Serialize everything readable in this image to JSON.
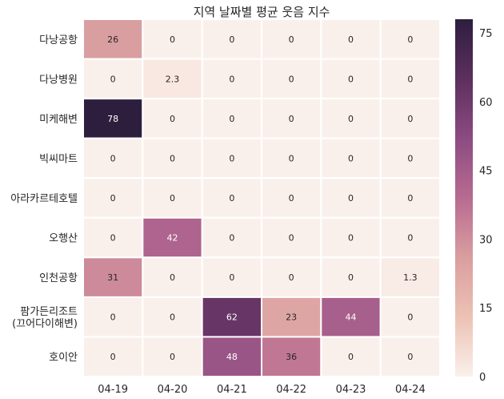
{
  "chart_data": {
    "type": "heatmap",
    "title": "지역 날짜별 평균 웃음 지수",
    "xlabel": "",
    "ylabel": "",
    "columns": [
      "04-19",
      "04-20",
      "04-21",
      "04-22",
      "04-23",
      "04-24"
    ],
    "rows": [
      [
        "다낭공항"
      ],
      [
        "다낭병원"
      ],
      [
        "미케해변"
      ],
      [
        "빅씨마트"
      ],
      [
        "아라카르테호텔"
      ],
      [
        "오행산"
      ],
      [
        "인천공항"
      ],
      [
        "팜가든리조트",
        "(끄어다이해변)"
      ],
      [
        "호이안"
      ]
    ],
    "values": [
      [
        26,
        0,
        0,
        0,
        0,
        0
      ],
      [
        0,
        2.3,
        0,
        0,
        0,
        0
      ],
      [
        78,
        0,
        0,
        0,
        0,
        0
      ],
      [
        0,
        0,
        0,
        0,
        0,
        0
      ],
      [
        0,
        0,
        0,
        0,
        0,
        0
      ],
      [
        0,
        42,
        0,
        0,
        0,
        0
      ],
      [
        31,
        0,
        0,
        0,
        0,
        1.3
      ],
      [
        0,
        0,
        62,
        23,
        44,
        0
      ],
      [
        0,
        0,
        48,
        36,
        0,
        0
      ]
    ],
    "annotations": [
      [
        "26",
        "0",
        "0",
        "0",
        "0",
        "0"
      ],
      [
        "0",
        "2.3",
        "0",
        "0",
        "0",
        "0"
      ],
      [
        "78",
        "0",
        "0",
        "0",
        "0",
        "0"
      ],
      [
        "0",
        "0",
        "0",
        "0",
        "0",
        "0"
      ],
      [
        "0",
        "0",
        "0",
        "0",
        "0",
        "0"
      ],
      [
        "0",
        "42",
        "0",
        "0",
        "0",
        "0"
      ],
      [
        "31",
        "0",
        "0",
        "0",
        "0",
        "1.3"
      ],
      [
        "0",
        "0",
        "62",
        "23",
        "44",
        "0"
      ],
      [
        "0",
        "0",
        "48",
        "36",
        "0",
        "0"
      ]
    ],
    "colorbar": {
      "vmin": 0,
      "vmax": 78,
      "ticks": [
        0,
        15,
        30,
        45,
        60,
        75
      ]
    },
    "colormap_stops": [
      "#faf0eb",
      "#ecc2b3",
      "#d99ea0",
      "#b86b91",
      "#8c4b82",
      "#5c2f5e",
      "#2d1e3e"
    ]
  }
}
